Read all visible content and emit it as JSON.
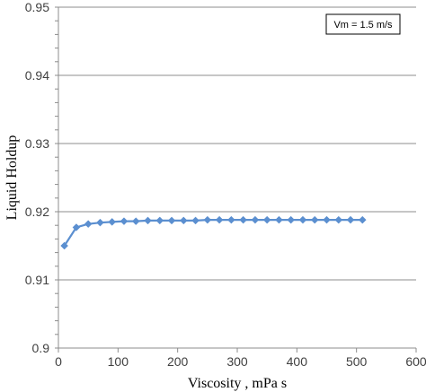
{
  "chart_data": {
    "type": "line",
    "title": "",
    "xlabel": "Viscosity , mPa s",
    "ylabel": "Liquid Holdup",
    "xlim": [
      0,
      600
    ],
    "ylim": [
      0.9,
      0.95
    ],
    "x_ticks": [
      "0",
      "100",
      "200",
      "300",
      "400",
      "500",
      "600"
    ],
    "y_ticks": [
      "0.9",
      "0.91",
      "0.92",
      "0.93",
      "0.94",
      "0.95"
    ],
    "grid": true,
    "annotation": "Vm = 1.5 m/s",
    "series": [
      {
        "color": "#5b8fd0",
        "marker": "diamond",
        "x": [
          10,
          30,
          50,
          70,
          90,
          110,
          130,
          150,
          170,
          190,
          210,
          230,
          250,
          270,
          290,
          310,
          330,
          350,
          370,
          390,
          410,
          430,
          450,
          470,
          490,
          510
        ],
        "y": [
          0.915,
          0.9177,
          0.9182,
          0.9184,
          0.9185,
          0.9186,
          0.9186,
          0.9187,
          0.9187,
          0.9187,
          0.9187,
          0.9187,
          0.9188,
          0.9188,
          0.9188,
          0.9188,
          0.9188,
          0.9188,
          0.9188,
          0.9188,
          0.9188,
          0.9188,
          0.9188,
          0.9188,
          0.9188,
          0.9188
        ]
      }
    ]
  }
}
